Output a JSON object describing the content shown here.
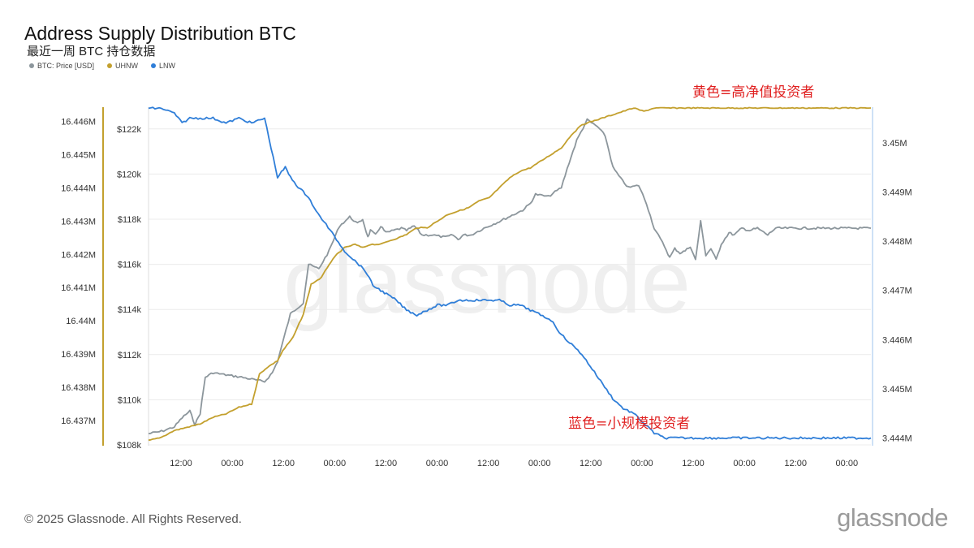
{
  "title": "Address Supply Distribution BTC",
  "subtitle": "最近一周 BTC 持仓数据",
  "footer": "© 2025 Glassnode. All Rights Reserved.",
  "brand": "glassnode",
  "watermark": "glassnode",
  "colors": {
    "price": "#8c969c",
    "uhnw": "#c3a02e",
    "lnw": "#2f7ed8",
    "annotation": "#e02020",
    "grid": "#ececec",
    "watermark": "#efefef"
  },
  "legend": [
    {
      "name": "BTC: Price [USD]",
      "color": "#8c969c"
    },
    {
      "name": "UHNW",
      "color": "#c3a02e"
    },
    {
      "name": "LNW",
      "color": "#2f7ed8"
    }
  ],
  "annotations": {
    "yellow": "黄色=高净值投资者",
    "blue": "蓝色=小规模投资者"
  },
  "chart_data": {
    "type": "line",
    "x_ticks": [
      "12:00",
      "00:00",
      "12:00",
      "00:00",
      "12:00",
      "00:00",
      "12:00",
      "00:00",
      "12:00",
      "00:00",
      "12:00",
      "00:00",
      "12:00",
      "00:00"
    ],
    "axes": {
      "uhnw_left": {
        "ticks": [
          "16.446M",
          "16.445M",
          "16.444M",
          "16.443M",
          "16.442M",
          "16.441M",
          "16.44M",
          "16.439M",
          "16.438M",
          "16.437M"
        ],
        "range": [
          16.43627,
          16.44645
        ]
      },
      "price_left": {
        "ticks": [
          "$122k",
          "$120k",
          "$118k",
          "$116k",
          "$114k",
          "$112k",
          "$110k",
          "$108k"
        ],
        "range": [
          108000,
          123000
        ]
      },
      "lnw_right": {
        "ticks": [
          "3.45M",
          "3.449M",
          "3.448M",
          "3.447M",
          "3.446M",
          "3.445M",
          "3.444M"
        ],
        "range": [
          3.44386,
          3.45074
        ]
      }
    },
    "series": [
      {
        "name": "BTC: Price [USD]",
        "axis": "price_left",
        "x": [
          0,
          0.05,
          0.1,
          0.13,
          0.16,
          0.18,
          0.2,
          0.22,
          0.25,
          0.3,
          0.36,
          0.45,
          0.48,
          0.5,
          0.55,
          0.6,
          0.62,
          0.66,
          0.7,
          0.74,
          0.78,
          0.81,
          0.83,
          0.85,
          0.86,
          0.88,
          0.9,
          0.92,
          0.95,
          0.98,
          1.0,
          1.03,
          1.06,
          1.1,
          1.15,
          1.18,
          1.2,
          1.22,
          1.25,
          1.3,
          1.36,
          1.45,
          1.48,
          1.5,
          1.55,
          1.6,
          1.63,
          1.66,
          1.7,
          1.74,
          1.77,
          1.8,
          1.83,
          1.86,
          1.9,
          1.93,
          1.96,
          2.0,
          2.02,
          2.04,
          2.06,
          2.08,
          2.1,
          2.12,
          2.14,
          2.16,
          2.18,
          2.2,
          2.22,
          2.25,
          2.27,
          2.3,
          2.33,
          2.36,
          2.4,
          2.43,
          2.46,
          2.5,
          2.53,
          2.56,
          2.58,
          2.6,
          2.63,
          2.66,
          2.7,
          2.72,
          2.75,
          2.78,
          2.8
        ],
        "values": [
          108.5,
          108.6,
          108.8,
          109.2,
          109.5,
          108.9,
          109.4,
          111.0,
          111.2,
          111.1,
          111.0,
          110.8,
          111.2,
          111.7,
          113.8,
          114.3,
          116.0,
          115.8,
          116.6,
          117.7,
          118.1,
          117.8,
          118.0,
          117.2,
          117.5,
          117.3,
          117.7,
          117.4,
          117.5,
          117.6,
          117.5,
          117.7,
          117.3,
          117.3,
          117.2,
          117.3,
          117.1,
          117.3,
          117.3,
          117.6,
          117.9,
          118.4,
          118.7,
          119.1,
          119.0,
          119.4,
          120.5,
          121.5,
          122.4,
          122.1,
          121.7,
          120.3,
          119.8,
          119.4,
          119.5,
          118.7,
          117.6,
          116.8,
          116.3,
          116.7,
          116.5,
          116.6,
          116.8,
          116.2,
          117.9,
          116.4,
          116.7,
          116.2,
          116.9,
          117.4,
          117.3,
          117.6,
          117.5,
          117.6,
          117.3,
          117.6,
          117.6,
          117.6,
          117.6,
          117.6,
          117.6,
          117.6,
          117.6,
          117.6,
          117.6,
          117.6,
          117.6,
          117.6,
          117.6
        ]
      },
      {
        "name": "UHNW",
        "axis": "uhnw_left",
        "x": [
          0,
          0.05,
          0.1,
          0.15,
          0.2,
          0.25,
          0.3,
          0.35,
          0.4,
          0.43,
          0.46,
          0.5,
          0.52,
          0.56,
          0.6,
          0.63,
          0.67,
          0.7,
          0.73,
          0.76,
          0.8,
          0.83,
          0.86,
          0.9,
          0.93,
          0.97,
          1.0,
          1.04,
          1.08,
          1.12,
          1.16,
          1.2,
          1.24,
          1.28,
          1.32,
          1.36,
          1.4,
          1.44,
          1.48,
          1.52,
          1.56,
          1.6,
          1.64,
          1.68,
          1.72,
          1.76,
          1.8,
          1.84,
          1.88,
          1.92,
          1.96,
          2.0,
          2.04,
          2.08,
          2.12,
          2.16,
          2.2,
          2.24,
          2.28,
          2.32,
          2.36,
          2.4,
          2.44,
          2.48,
          2.52,
          2.56,
          2.6,
          2.64,
          2.68,
          2.72,
          2.76,
          2.8
        ],
        "values": [
          16.4364,
          16.4365,
          16.4367,
          16.4368,
          16.4369,
          16.4371,
          16.4372,
          16.4374,
          16.4375,
          16.4384,
          16.4386,
          16.4388,
          16.4391,
          16.4395,
          16.4402,
          16.4411,
          16.4413,
          16.4417,
          16.442,
          16.4422,
          16.4423,
          16.4422,
          16.4423,
          16.4423,
          16.4424,
          16.4425,
          16.4426,
          16.4428,
          16.4428,
          16.443,
          16.4432,
          16.4433,
          16.4434,
          16.4436,
          16.4437,
          16.444,
          16.4443,
          16.4445,
          16.4446,
          16.4448,
          16.445,
          16.4452,
          16.4456,
          16.4459,
          16.446,
          16.4461,
          16.4462,
          16.4463,
          16.4464,
          16.4463,
          16.4464,
          16.4464,
          16.4464,
          16.4464,
          16.4464,
          16.4464,
          16.4464,
          16.4464,
          16.4464,
          16.4464,
          16.4464,
          16.4464,
          16.4464,
          16.4464,
          16.4464,
          16.4464,
          16.4464,
          16.4464,
          16.4464,
          16.4464,
          16.4464,
          16.4464
        ]
      },
      {
        "name": "LNW",
        "axis": "lnw_right",
        "x": [
          0,
          0.05,
          0.1,
          0.13,
          0.16,
          0.2,
          0.25,
          0.3,
          0.35,
          0.4,
          0.45,
          0.5,
          0.53,
          0.55,
          0.58,
          0.6,
          0.62,
          0.65,
          0.68,
          0.72,
          0.76,
          0.8,
          0.84,
          0.87,
          0.9,
          0.93,
          0.96,
          1.0,
          1.04,
          1.08,
          1.12,
          1.16,
          1.2,
          1.24,
          1.28,
          1.32,
          1.36,
          1.4,
          1.44,
          1.48,
          1.52,
          1.56,
          1.6,
          1.64,
          1.68,
          1.72,
          1.76,
          1.8,
          1.84,
          1.88,
          1.92,
          1.96,
          2.0,
          2.04,
          2.08,
          2.12,
          2.16,
          2.2,
          2.24,
          2.28,
          2.32,
          2.36,
          2.4,
          2.44,
          2.48,
          2.52,
          2.56,
          2.6,
          2.64,
          2.68,
          2.72,
          2.76,
          2.8
        ],
        "values": [
          3.4507,
          3.4507,
          3.4506,
          3.4504,
          3.4505,
          3.4505,
          3.4505,
          3.4504,
          3.4505,
          3.4504,
          3.4505,
          3.4493,
          3.4495,
          3.4493,
          3.4491,
          3.449,
          3.4489,
          3.4486,
          3.4484,
          3.4481,
          3.4478,
          3.4476,
          3.4474,
          3.4471,
          3.447,
          3.4469,
          3.4468,
          3.4466,
          3.4465,
          3.4466,
          3.4467,
          3.4467,
          3.4468,
          3.4468,
          3.4468,
          3.4468,
          3.4468,
          3.4467,
          3.4467,
          3.4466,
          3.4465,
          3.4464,
          3.4461,
          3.4459,
          3.4457,
          3.4454,
          3.4451,
          3.4448,
          3.4446,
          3.4445,
          3.4443,
          3.4441,
          3.444,
          3.444,
          3.444,
          3.444,
          3.444,
          3.444,
          3.444,
          3.444,
          3.444,
          3.444,
          3.444,
          3.444,
          3.444,
          3.444,
          3.444,
          3.444,
          3.444,
          3.444,
          3.444,
          3.444,
          3.444
        ]
      }
    ]
  }
}
